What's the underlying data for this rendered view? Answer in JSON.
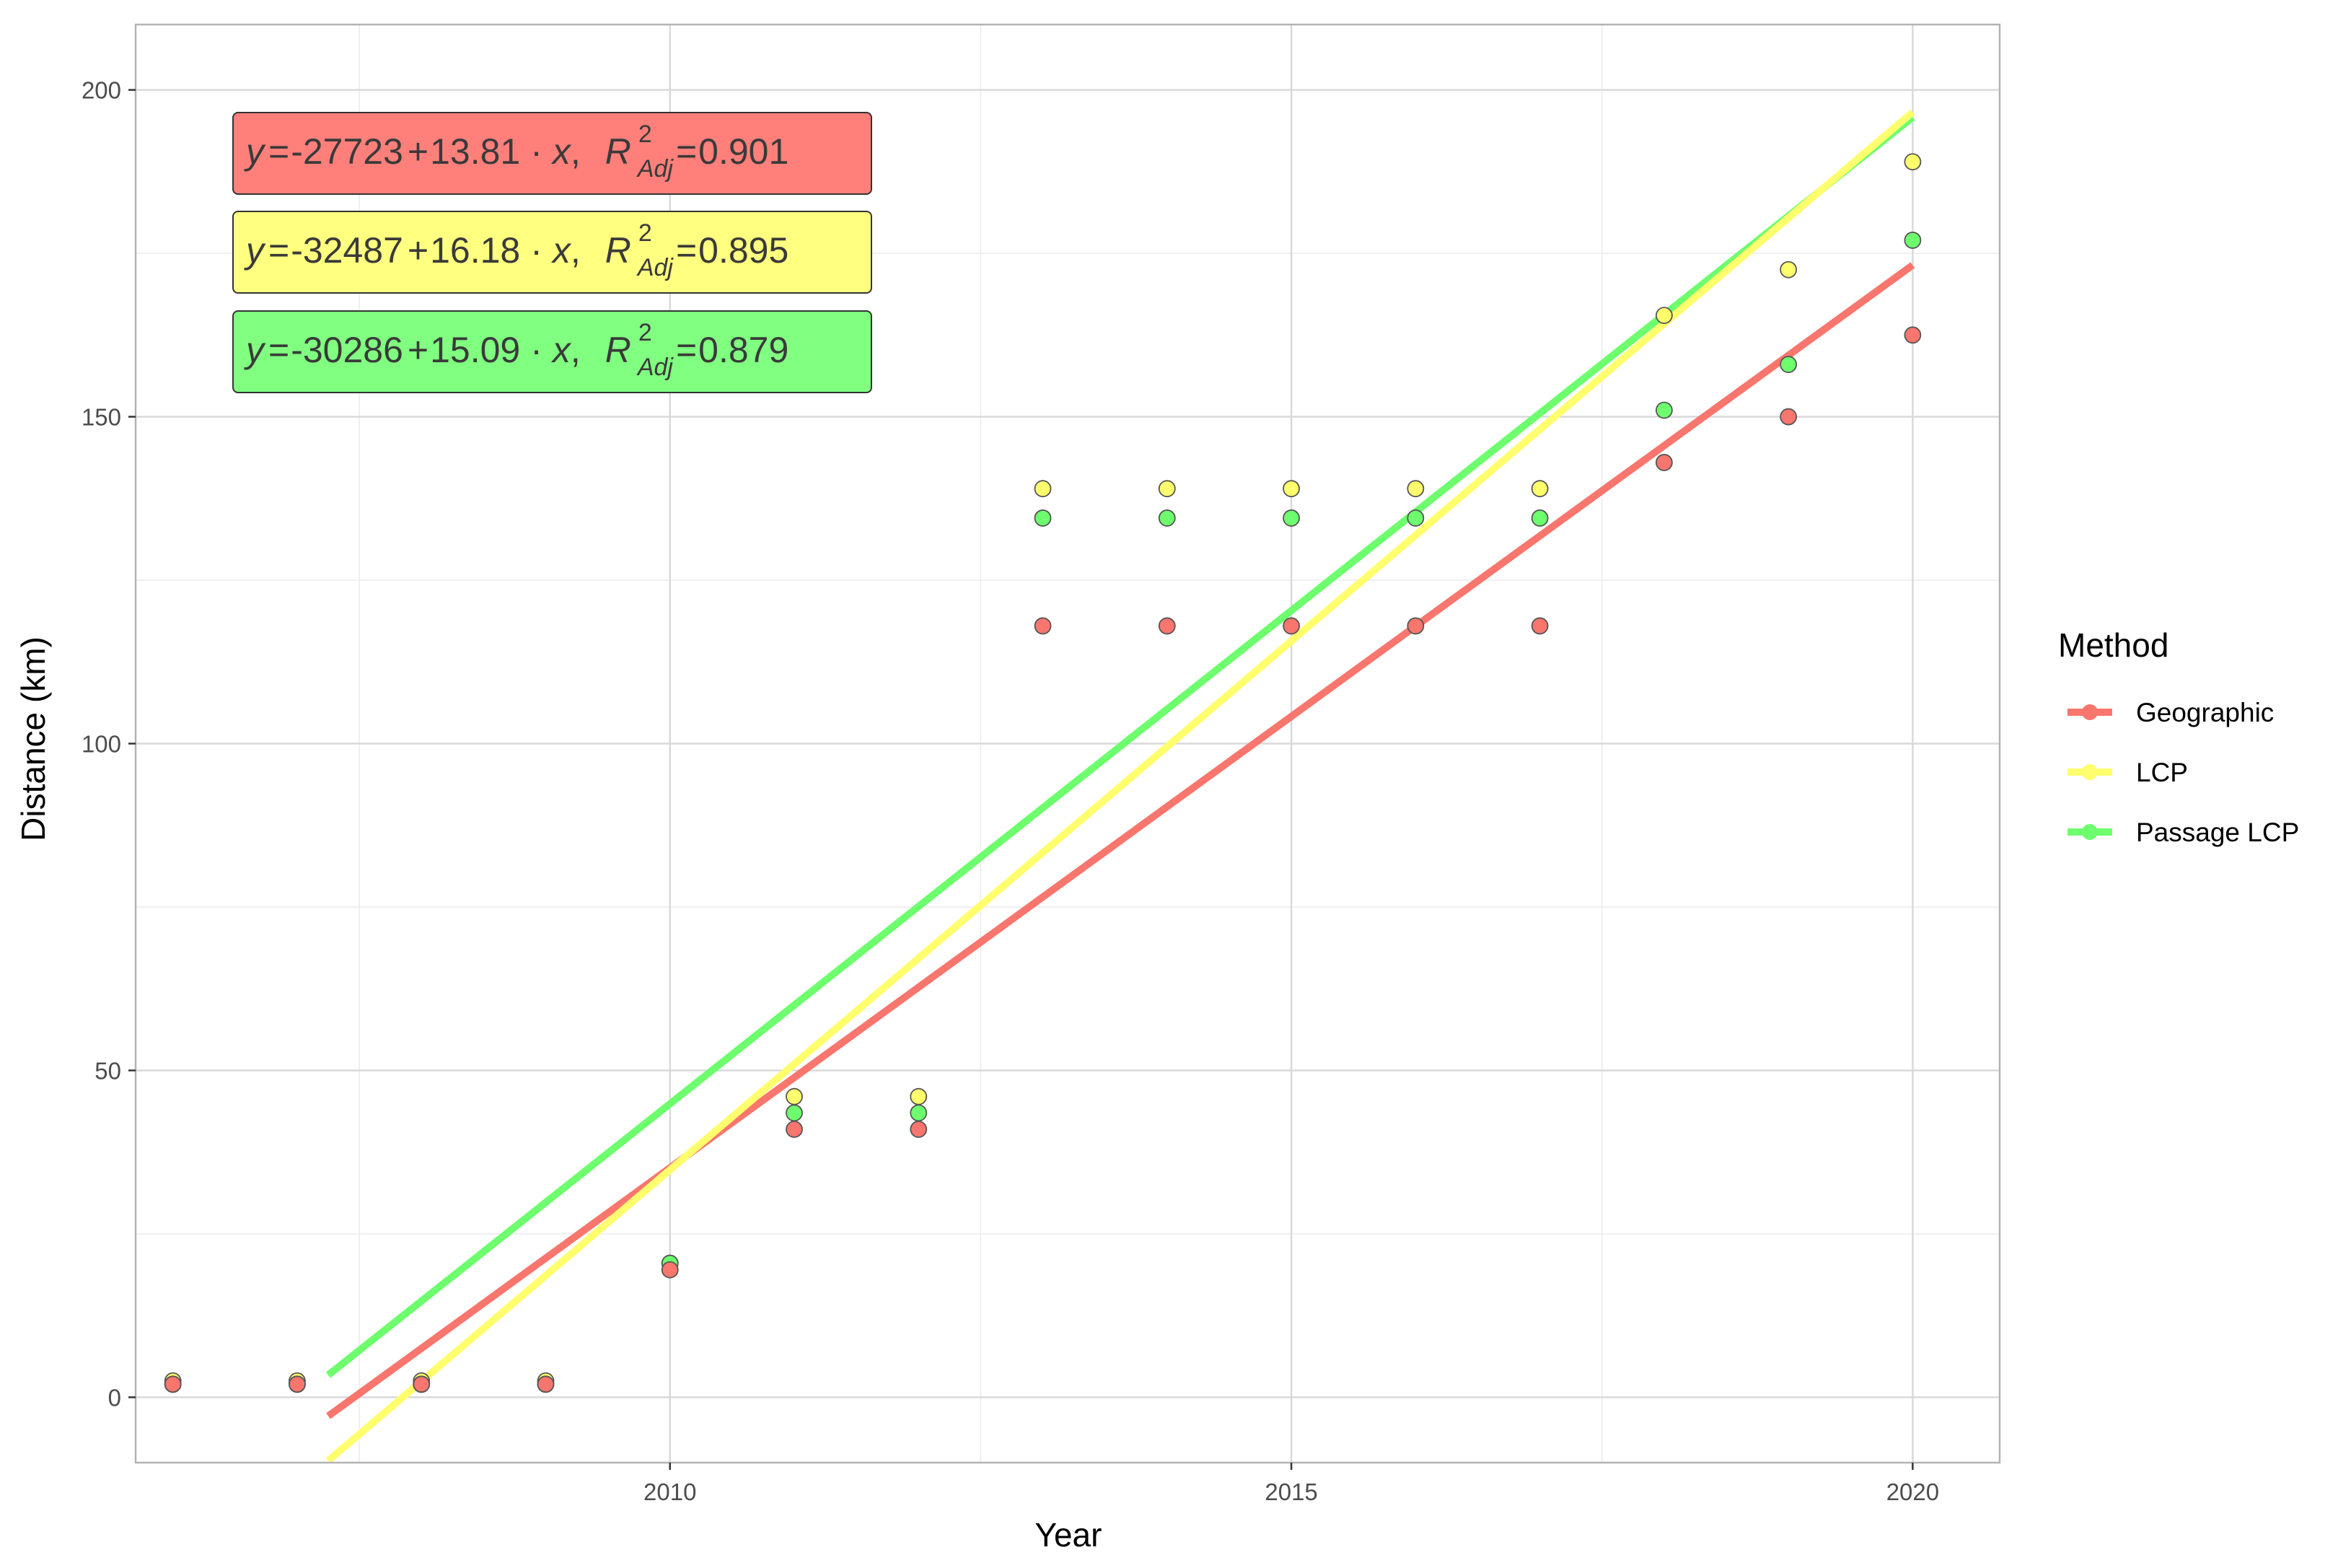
{
  "chart_data": {
    "type": "scatter",
    "xlabel": "Year",
    "ylabel": "Distance (km)",
    "xlim": [
      2005.7,
      2020.7
    ],
    "ylim": [
      -10,
      210
    ],
    "x_ticks": [
      2010,
      2015,
      2020
    ],
    "y_ticks": [
      0,
      50,
      100,
      150,
      200
    ],
    "grid": true,
    "legend": {
      "title": "Method",
      "placement": "right"
    },
    "series": [
      {
        "name": "Geographic",
        "color": "#F8766D",
        "x": [
          2006,
          2007,
          2008,
          2009,
          2010,
          2011,
          2012,
          2013,
          2014,
          2015,
          2016,
          2017,
          2018,
          2019,
          2020
        ],
        "y": [
          2,
          2,
          2,
          2,
          19.5,
          41,
          41,
          118,
          118,
          118,
          118,
          118,
          143,
          150,
          162.5
        ],
        "fit": {
          "intercept": -27723,
          "slope": 13.81,
          "r2_adj": "0.901",
          "x_range": [
            2007.25,
            2020
          ]
        },
        "equation": {
          "y": "y",
          "eq": "=",
          "intercept": "-27723",
          "plus": "+",
          "slope": "13.81",
          "dot": "·",
          "x": "x",
          "comma": ",",
          "R": "R",
          "sup": "2",
          "sub": "Adj",
          "r2": "0.901"
        }
      },
      {
        "name": "LCP",
        "color": "#FFFF6D",
        "x": [
          2006,
          2007,
          2008,
          2009,
          2010,
          2011,
          2012,
          2013,
          2014,
          2015,
          2016,
          2017,
          2018,
          2019,
          2020
        ],
        "y": [
          2.5,
          2.5,
          2.5,
          2.5,
          20.5,
          46,
          46,
          139,
          139,
          139,
          139,
          139,
          165.5,
          172.5,
          189
        ],
        "fit": {
          "intercept": -32487,
          "slope": 16.18,
          "r2_adj": "0.895",
          "x_range": [
            2007.25,
            2020
          ]
        },
        "equation": {
          "y": "y",
          "eq": "=",
          "intercept": "-32487",
          "plus": "+",
          "slope": "16.18",
          "dot": "·",
          "x": "x",
          "comma": ",",
          "R": "R",
          "sup": "2",
          "sub": "Adj",
          "r2": "0.895"
        }
      },
      {
        "name": "Passage LCP",
        "color": "#6DFF6D",
        "x": [
          2006,
          2007,
          2008,
          2009,
          2010,
          2011,
          2012,
          2013,
          2014,
          2015,
          2016,
          2017,
          2018,
          2019,
          2020
        ],
        "y": [
          2,
          2,
          2,
          2,
          20.5,
          43.5,
          43.5,
          134.5,
          134.5,
          134.5,
          134.5,
          134.5,
          151,
          158,
          177
        ],
        "fit": {
          "intercept": -30286,
          "slope": 15.09,
          "r2_adj": "0.879",
          "x_range": [
            2007.25,
            2020
          ]
        },
        "equation": {
          "y": "y",
          "eq": "=",
          "intercept": "-30286",
          "plus": "+",
          "slope": "15.09",
          "dot": "·",
          "x": "x",
          "comma": ",",
          "R": "R",
          "sup": "2",
          "sub": "Adj",
          "r2": "0.879"
        }
      }
    ]
  }
}
